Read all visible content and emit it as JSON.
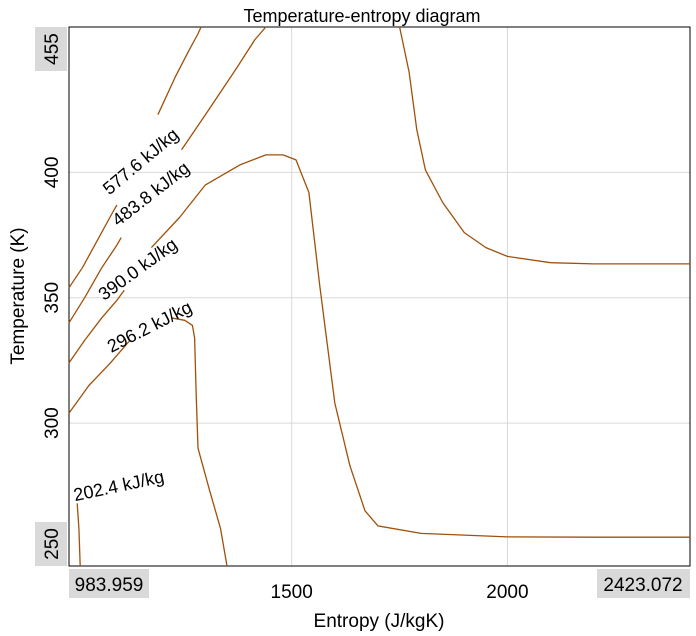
{
  "chart_data": {
    "type": "contour",
    "title": "Temperature-entropy diagram",
    "xlabel": "Entropy (J/kgK)",
    "ylabel": "Temperature (K)",
    "xlim": [
      983.959,
      2423.072
    ],
    "ylim": [
      243,
      458
    ],
    "x_ticks": [
      1500,
      2000
    ],
    "y_ticks": [
      300,
      350,
      400
    ],
    "x_range_labels": [
      "983.959",
      "2423.072"
    ],
    "y_range_labels": [
      "250",
      "455"
    ],
    "grid": true,
    "line_color": "#a0500a",
    "series": [
      {
        "name": "577.6 kJ/kg",
        "segments": [
          [
            [
              983.959,
              354
            ],
            [
              1015,
              362
            ],
            [
              1050,
              373
            ],
            [
              1085,
              384
            ],
            [
              1095,
              387
            ]
          ],
          [
            [
              1190,
              423
            ],
            [
              1230,
              438
            ],
            [
              1260,
              448
            ],
            [
              1282,
              455
            ],
            [
              1290,
              458
            ]
          ]
        ]
      },
      {
        "name": "483.8 kJ/kg",
        "segments": [
          [
            [
              983.959,
              340
            ],
            [
              1020,
              350
            ],
            [
              1060,
              362
            ],
            [
              1095,
              371
            ],
            [
              1105,
              374
            ]
          ],
          [
            [
              1245,
              409
            ],
            [
              1300,
              423
            ],
            [
              1370,
              441
            ],
            [
              1415,
              453
            ],
            [
              1440,
              458
            ]
          ]
        ]
      },
      {
        "name": "390.0 kJ/kg",
        "segments": [
          [
            [
              983.959,
              324
            ],
            [
              1020,
              333
            ],
            [
              1060,
              342
            ],
            [
              1095,
              349
            ],
            [
              1112,
              353
            ]
          ],
          [
            [
              1175,
              370
            ],
            [
              1240,
              382
            ],
            [
              1300,
              395
            ],
            [
              1380,
              403
            ],
            [
              1440,
              407
            ],
            [
              1480,
              407
            ],
            [
              1510,
              405
            ],
            [
              1540,
              392
            ],
            [
              1565,
              355
            ],
            [
              1600,
              308
            ],
            [
              1635,
              283
            ],
            [
              1670,
              265
            ],
            [
              1700,
              259
            ],
            [
              1800,
              256
            ],
            [
              2000,
              254.6
            ],
            [
              2200,
              254.5
            ],
            [
              2423.072,
              254.5
            ]
          ]
        ]
      },
      {
        "name": "296.2 kJ/kg",
        "segments": [
          [
            [
              983.959,
              304
            ],
            [
              1030,
              315
            ],
            [
              1080,
              324
            ],
            [
              1115,
              331
            ],
            [
              1125,
              333
            ]
          ],
          [
            [
              1220,
              342
            ],
            [
              1252,
              341
            ],
            [
              1270,
              339
            ],
            [
              1275,
              334
            ],
            [
              1279,
              310
            ],
            [
              1283,
              290
            ],
            [
              1310,
              273
            ],
            [
              1335,
              258
            ],
            [
              1350,
              243
            ]
          ]
        ]
      },
      {
        "name": "202.4 kJ/kg",
        "segments": [
          [
            [
              1010,
              243
            ],
            [
              1007,
              258
            ],
            [
              1003,
              268
            ]
          ]
        ]
      },
      {
        "name": "",
        "segments": [
          [
            [
              1750,
              458
            ],
            [
              1772,
              440
            ],
            [
              1790,
              417
            ],
            [
              1810,
              401
            ],
            [
              1850,
              388
            ],
            [
              1900,
              376
            ],
            [
              1950,
              370
            ],
            [
              2000,
              366.5
            ],
            [
              2100,
              364
            ],
            [
              2200,
              363.5
            ],
            [
              2423.072,
              363.5
            ]
          ]
        ]
      }
    ],
    "contour_labels": [
      {
        "text": "577.6 kJ/kg",
        "x": 1152,
        "y": 404,
        "angle": -40
      },
      {
        "text": "483.8 kJ/kg",
        "x": 1175,
        "y": 391,
        "angle": -38
      },
      {
        "text": "390.0 kJ/kg",
        "x": 1145,
        "y": 361,
        "angle": -36
      },
      {
        "text": "296.2 kJ/kg",
        "x": 1172,
        "y": 338,
        "angle": -27
      },
      {
        "text": "202.4 kJ/kg",
        "x": 1100,
        "y": 274.5,
        "angle": -12
      }
    ]
  }
}
